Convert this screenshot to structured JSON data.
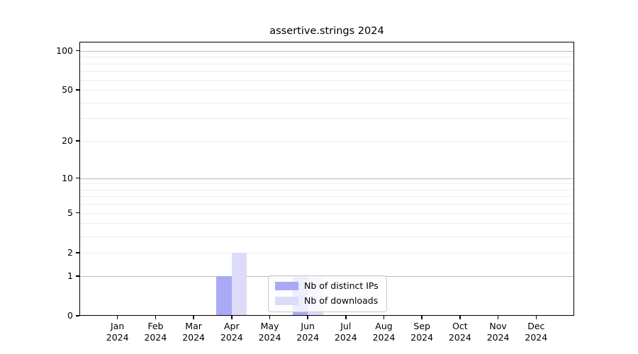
{
  "title": "assertive.strings 2024",
  "colors": {
    "distinct_ips": "#a9a9f6",
    "downloads": "#dcdcf9",
    "grid_major": "#bdbdbd",
    "grid_minor": "#ececec",
    "axis": "#000000",
    "legend_border": "#c9c9c9"
  },
  "chart_data": {
    "type": "bar",
    "title": "assertive.strings 2024",
    "categories": [
      "Jan 2024",
      "Feb 2024",
      "Mar 2024",
      "Apr 2024",
      "May 2024",
      "Jun 2024",
      "Jul 2024",
      "Aug 2024",
      "Sep 2024",
      "Oct 2024",
      "Nov 2024",
      "Dec 2024"
    ],
    "x_tick_month": [
      "Jan",
      "Feb",
      "Mar",
      "Apr",
      "May",
      "Jun",
      "Jul",
      "Aug",
      "Sep",
      "Oct",
      "Nov",
      "Dec"
    ],
    "x_tick_year": "2024",
    "series": [
      {
        "name": "Nb of distinct IPs",
        "color": "#a9a9f6",
        "values": [
          0,
          0,
          0,
          1,
          0,
          1,
          0,
          0,
          0,
          0,
          0,
          0
        ]
      },
      {
        "name": "Nb of downloads",
        "color": "#dcdcf9",
        "values": [
          0,
          0,
          0,
          2,
          0,
          1,
          0,
          0,
          0,
          0,
          0,
          0
        ]
      }
    ],
    "yscale": "log1p",
    "ylim": [
      0,
      117
    ],
    "y_ticks": [
      0,
      1,
      2,
      5,
      10,
      20,
      50,
      100
    ],
    "grid_major_values": [
      1,
      10,
      100
    ],
    "grid_minor_values": [
      2,
      3,
      4,
      5,
      6,
      7,
      8,
      9,
      20,
      30,
      40,
      50,
      60,
      70,
      80,
      90
    ],
    "grid": "horizontal",
    "legend_position": "inside-bottom-center",
    "legend_items": [
      "Nb of distinct IPs",
      "Nb of downloads"
    ]
  }
}
